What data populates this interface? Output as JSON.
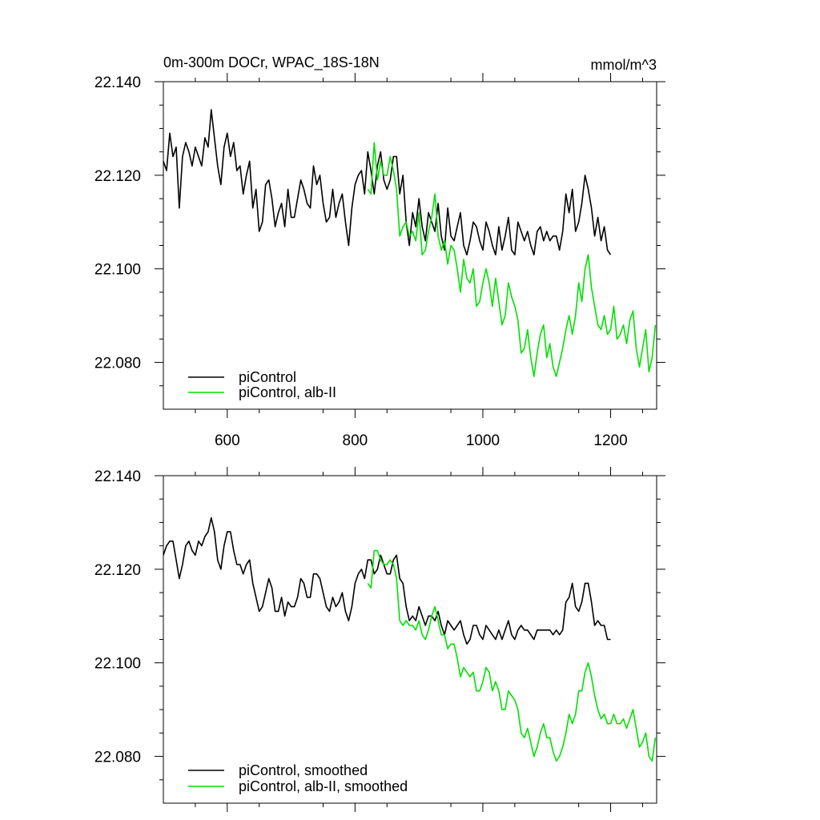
{
  "chart_data": [
    {
      "type": "line",
      "title_left": "0m-300m DOCr, WPAC_18S-18N",
      "title_right": "mmol/m^3",
      "xlabel": "",
      "ylabel": "",
      "xlim": [
        500,
        1272
      ],
      "ylim": [
        22.07,
        22.14
      ],
      "x_ticks": [
        600,
        800,
        1000,
        1200
      ],
      "x_tick_labels": [
        "600",
        "800",
        "1000",
        "1200"
      ],
      "y_ticks": [
        22.08,
        22.1,
        22.12,
        22.14
      ],
      "y_tick_labels": [
        "22.080",
        "22.100",
        "22.120",
        "22.140"
      ],
      "grid": false,
      "legend_position": "bottom-left",
      "series": [
        {
          "name": "piControl",
          "color": "#000000",
          "x": [
            500,
            505,
            510,
            515,
            520,
            525,
            530,
            535,
            540,
            545,
            550,
            555,
            560,
            565,
            570,
            575,
            580,
            585,
            590,
            595,
            600,
            605,
            610,
            615,
            620,
            625,
            630,
            635,
            640,
            645,
            650,
            655,
            660,
            665,
            670,
            675,
            680,
            685,
            690,
            695,
            700,
            705,
            710,
            715,
            720,
            725,
            730,
            735,
            740,
            745,
            750,
            755,
            760,
            765,
            770,
            775,
            780,
            785,
            790,
            795,
            800,
            805,
            810,
            815,
            820,
            825,
            830,
            835,
            840,
            845,
            850,
            855,
            860,
            865,
            870,
            875,
            880,
            885,
            890,
            895,
            900,
            905,
            910,
            915,
            920,
            925,
            930,
            935,
            940,
            945,
            950,
            955,
            960,
            965,
            970,
            975,
            980,
            985,
            990,
            995,
            1000,
            1005,
            1010,
            1015,
            1020,
            1025,
            1030,
            1035,
            1040,
            1045,
            1050,
            1055,
            1060,
            1065,
            1070,
            1075,
            1080,
            1085,
            1090,
            1095,
            1100,
            1105,
            1110,
            1115,
            1120,
            1125,
            1130,
            1135,
            1140,
            1145,
            1150,
            1155,
            1160,
            1165,
            1170,
            1175,
            1180,
            1185,
            1190,
            1195,
            1200
          ],
          "values": [
            22.123,
            22.121,
            22.129,
            22.124,
            22.126,
            22.113,
            22.124,
            22.127,
            22.125,
            22.122,
            22.126,
            22.124,
            22.122,
            22.128,
            22.126,
            22.134,
            22.128,
            22.122,
            22.118,
            22.126,
            22.129,
            22.124,
            22.127,
            22.121,
            22.122,
            22.116,
            22.12,
            22.123,
            22.113,
            22.117,
            22.108,
            22.11,
            22.118,
            22.119,
            22.115,
            22.109,
            22.112,
            22.114,
            22.109,
            22.117,
            22.111,
            22.111,
            22.115,
            22.119,
            22.117,
            22.114,
            22.113,
            22.122,
            22.118,
            22.12,
            22.114,
            22.11,
            22.111,
            22.117,
            22.111,
            22.114,
            22.116,
            22.11,
            22.105,
            22.113,
            22.118,
            22.12,
            22.121,
            22.116,
            22.125,
            22.121,
            22.116,
            22.122,
            22.125,
            22.119,
            22.117,
            22.119,
            22.124,
            22.124,
            22.116,
            22.12,
            22.11,
            22.105,
            22.112,
            22.109,
            22.115,
            22.109,
            22.106,
            22.112,
            22.11,
            22.108,
            22.114,
            22.107,
            22.104,
            22.113,
            22.107,
            22.106,
            22.109,
            22.112,
            22.105,
            22.103,
            22.106,
            22.11,
            22.109,
            22.106,
            22.104,
            22.11,
            22.108,
            22.105,
            22.103,
            22.109,
            22.104,
            22.107,
            22.111,
            22.104,
            22.103,
            22.11,
            22.108,
            22.106,
            22.108,
            22.105,
            22.103,
            22.108,
            22.109,
            22.106,
            22.108,
            22.106,
            22.107,
            22.107,
            22.104,
            22.108,
            22.116,
            22.112,
            22.117,
            22.108,
            22.11,
            22.114,
            22.12,
            22.117,
            22.113,
            22.107,
            22.111,
            22.106,
            22.109,
            22.104,
            22.103
          ]
        },
        {
          "name": "piControl, alb-II",
          "color": "#00e000",
          "x": [
            820,
            825,
            830,
            835,
            840,
            845,
            850,
            855,
            860,
            865,
            870,
            875,
            880,
            885,
            890,
            895,
            900,
            905,
            910,
            915,
            920,
            925,
            930,
            935,
            940,
            945,
            950,
            955,
            960,
            965,
            970,
            975,
            980,
            985,
            990,
            995,
            1000,
            1005,
            1010,
            1015,
            1020,
            1025,
            1030,
            1035,
            1040,
            1045,
            1050,
            1055,
            1060,
            1065,
            1070,
            1075,
            1080,
            1085,
            1090,
            1095,
            1100,
            1105,
            1110,
            1115,
            1120,
            1125,
            1130,
            1135,
            1140,
            1145,
            1150,
            1155,
            1160,
            1165,
            1170,
            1175,
            1180,
            1185,
            1190,
            1195,
            1200,
            1205,
            1210,
            1215,
            1220,
            1225,
            1230,
            1235,
            1240,
            1245,
            1250,
            1255,
            1260,
            1265,
            1270
          ],
          "values": [
            22.117,
            22.116,
            22.127,
            22.119,
            22.123,
            22.12,
            22.12,
            22.124,
            22.121,
            22.117,
            22.107,
            22.109,
            22.11,
            22.107,
            22.108,
            22.106,
            22.112,
            22.103,
            22.104,
            22.108,
            22.111,
            22.116,
            22.107,
            22.104,
            22.106,
            22.101,
            22.105,
            22.104,
            22.1,
            22.095,
            22.102,
            22.098,
            22.097,
            22.1,
            22.092,
            22.093,
            22.097,
            22.1,
            22.097,
            22.092,
            22.098,
            22.093,
            22.088,
            22.09,
            22.097,
            22.094,
            22.092,
            22.089,
            22.082,
            22.083,
            22.087,
            22.081,
            22.077,
            22.082,
            22.086,
            22.088,
            22.081,
            22.084,
            22.079,
            22.077,
            22.08,
            22.083,
            22.087,
            22.09,
            22.086,
            22.09,
            22.097,
            22.093,
            22.1,
            22.103,
            22.096,
            22.092,
            22.088,
            22.087,
            22.09,
            22.086,
            22.087,
            22.092,
            22.085,
            22.086,
            22.088,
            22.084,
            22.089,
            22.091,
            22.083,
            22.079,
            22.083,
            22.087,
            22.078,
            22.081,
            22.088
          ]
        }
      ]
    },
    {
      "type": "line",
      "title_left": "",
      "title_right": "",
      "xlabel": "",
      "ylabel": "",
      "xlim": [
        500,
        1272
      ],
      "ylim": [
        22.07,
        22.14
      ],
      "x_ticks": [
        600,
        800,
        1000,
        1200
      ],
      "x_tick_labels": [],
      "y_ticks": [
        22.08,
        22.1,
        22.12,
        22.14
      ],
      "y_tick_labels": [
        "22.080",
        "22.100",
        "22.120",
        "22.140"
      ],
      "grid": false,
      "legend_position": "bottom-left",
      "series": [
        {
          "name": "piControl, smoothed",
          "color": "#000000",
          "x": [
            500,
            505,
            510,
            515,
            520,
            525,
            530,
            535,
            540,
            545,
            550,
            555,
            560,
            565,
            570,
            575,
            580,
            585,
            590,
            595,
            600,
            605,
            610,
            615,
            620,
            625,
            630,
            635,
            640,
            645,
            650,
            655,
            660,
            665,
            670,
            675,
            680,
            685,
            690,
            695,
            700,
            705,
            710,
            715,
            720,
            725,
            730,
            735,
            740,
            745,
            750,
            755,
            760,
            765,
            770,
            775,
            780,
            785,
            790,
            795,
            800,
            805,
            810,
            815,
            820,
            825,
            830,
            835,
            840,
            845,
            850,
            855,
            860,
            865,
            870,
            875,
            880,
            885,
            890,
            895,
            900,
            905,
            910,
            915,
            920,
            925,
            930,
            935,
            940,
            945,
            950,
            955,
            960,
            965,
            970,
            975,
            980,
            985,
            990,
            995,
            1000,
            1005,
            1010,
            1015,
            1020,
            1025,
            1030,
            1035,
            1040,
            1045,
            1050,
            1055,
            1060,
            1065,
            1070,
            1075,
            1080,
            1085,
            1090,
            1095,
            1100,
            1105,
            1110,
            1115,
            1120,
            1125,
            1130,
            1135,
            1140,
            1145,
            1150,
            1155,
            1160,
            1165,
            1170,
            1175,
            1180,
            1185,
            1190,
            1195,
            1200
          ],
          "values": [
            22.123,
            22.125,
            22.126,
            22.126,
            22.122,
            22.118,
            22.121,
            22.125,
            22.126,
            22.124,
            22.123,
            22.126,
            22.125,
            22.127,
            22.128,
            22.131,
            22.128,
            22.122,
            22.12,
            22.125,
            22.128,
            22.128,
            22.124,
            22.121,
            22.121,
            22.119,
            22.121,
            22.122,
            22.117,
            22.114,
            22.111,
            22.112,
            22.115,
            22.118,
            22.116,
            22.111,
            22.111,
            22.114,
            22.11,
            22.113,
            22.112,
            22.112,
            22.114,
            22.118,
            22.117,
            22.114,
            22.114,
            22.119,
            22.119,
            22.118,
            22.115,
            22.112,
            22.111,
            22.114,
            22.112,
            22.113,
            22.115,
            22.111,
            22.109,
            22.112,
            22.117,
            22.119,
            22.12,
            22.118,
            22.122,
            22.122,
            22.119,
            22.12,
            22.123,
            22.121,
            22.119,
            22.119,
            22.122,
            22.123,
            22.118,
            22.117,
            22.112,
            22.109,
            22.11,
            22.109,
            22.112,
            22.11,
            22.108,
            22.11,
            22.11,
            22.109,
            22.111,
            22.108,
            22.106,
            22.109,
            22.108,
            22.107,
            22.108,
            22.109,
            22.106,
            22.104,
            22.105,
            22.108,
            22.108,
            22.106,
            22.105,
            22.108,
            22.107,
            22.106,
            22.105,
            22.107,
            22.105,
            22.107,
            22.109,
            22.106,
            22.105,
            22.107,
            22.108,
            22.107,
            22.107,
            22.106,
            22.105,
            22.107,
            22.107,
            22.107,
            22.107,
            22.107,
            22.106,
            22.107,
            22.106,
            22.107,
            22.113,
            22.114,
            22.117,
            22.112,
            22.111,
            22.113,
            22.117,
            22.117,
            22.113,
            22.108,
            22.109,
            22.108,
            22.108,
            22.105,
            22.105
          ]
        },
        {
          "name": "piControl, alb-II, smoothed",
          "color": "#00e000",
          "x": [
            820,
            825,
            830,
            835,
            840,
            845,
            850,
            855,
            860,
            865,
            870,
            875,
            880,
            885,
            890,
            895,
            900,
            905,
            910,
            915,
            920,
            925,
            930,
            935,
            940,
            945,
            950,
            955,
            960,
            965,
            970,
            975,
            980,
            985,
            990,
            995,
            1000,
            1005,
            1010,
            1015,
            1020,
            1025,
            1030,
            1035,
            1040,
            1045,
            1050,
            1055,
            1060,
            1065,
            1070,
            1075,
            1080,
            1085,
            1090,
            1095,
            1100,
            1105,
            1110,
            1115,
            1120,
            1125,
            1130,
            1135,
            1140,
            1145,
            1150,
            1155,
            1160,
            1165,
            1170,
            1175,
            1180,
            1185,
            1190,
            1195,
            1200,
            1205,
            1210,
            1215,
            1220,
            1225,
            1230,
            1235,
            1240,
            1245,
            1250,
            1255,
            1260,
            1265,
            1270
          ],
          "values": [
            22.117,
            22.116,
            22.124,
            22.124,
            22.122,
            22.121,
            22.121,
            22.122,
            22.121,
            22.118,
            22.109,
            22.108,
            22.109,
            22.108,
            22.108,
            22.107,
            22.109,
            22.106,
            22.105,
            22.107,
            22.11,
            22.112,
            22.109,
            22.106,
            22.106,
            22.103,
            22.104,
            22.104,
            22.101,
            22.097,
            22.099,
            22.098,
            22.097,
            22.098,
            22.094,
            22.094,
            22.096,
            22.099,
            22.098,
            22.094,
            22.096,
            22.094,
            22.09,
            22.09,
            22.094,
            22.093,
            22.092,
            22.09,
            22.085,
            22.084,
            22.086,
            22.083,
            22.08,
            22.082,
            22.085,
            22.087,
            22.084,
            22.084,
            22.081,
            22.079,
            22.08,
            22.082,
            22.085,
            22.089,
            22.087,
            22.089,
            22.094,
            22.094,
            22.098,
            22.1,
            22.097,
            22.093,
            22.09,
            22.088,
            22.089,
            22.087,
            22.087,
            22.089,
            22.087,
            22.087,
            22.088,
            22.086,
            22.088,
            22.09,
            22.086,
            22.082,
            22.083,
            22.085,
            22.08,
            22.079,
            22.084
          ]
        }
      ]
    }
  ]
}
